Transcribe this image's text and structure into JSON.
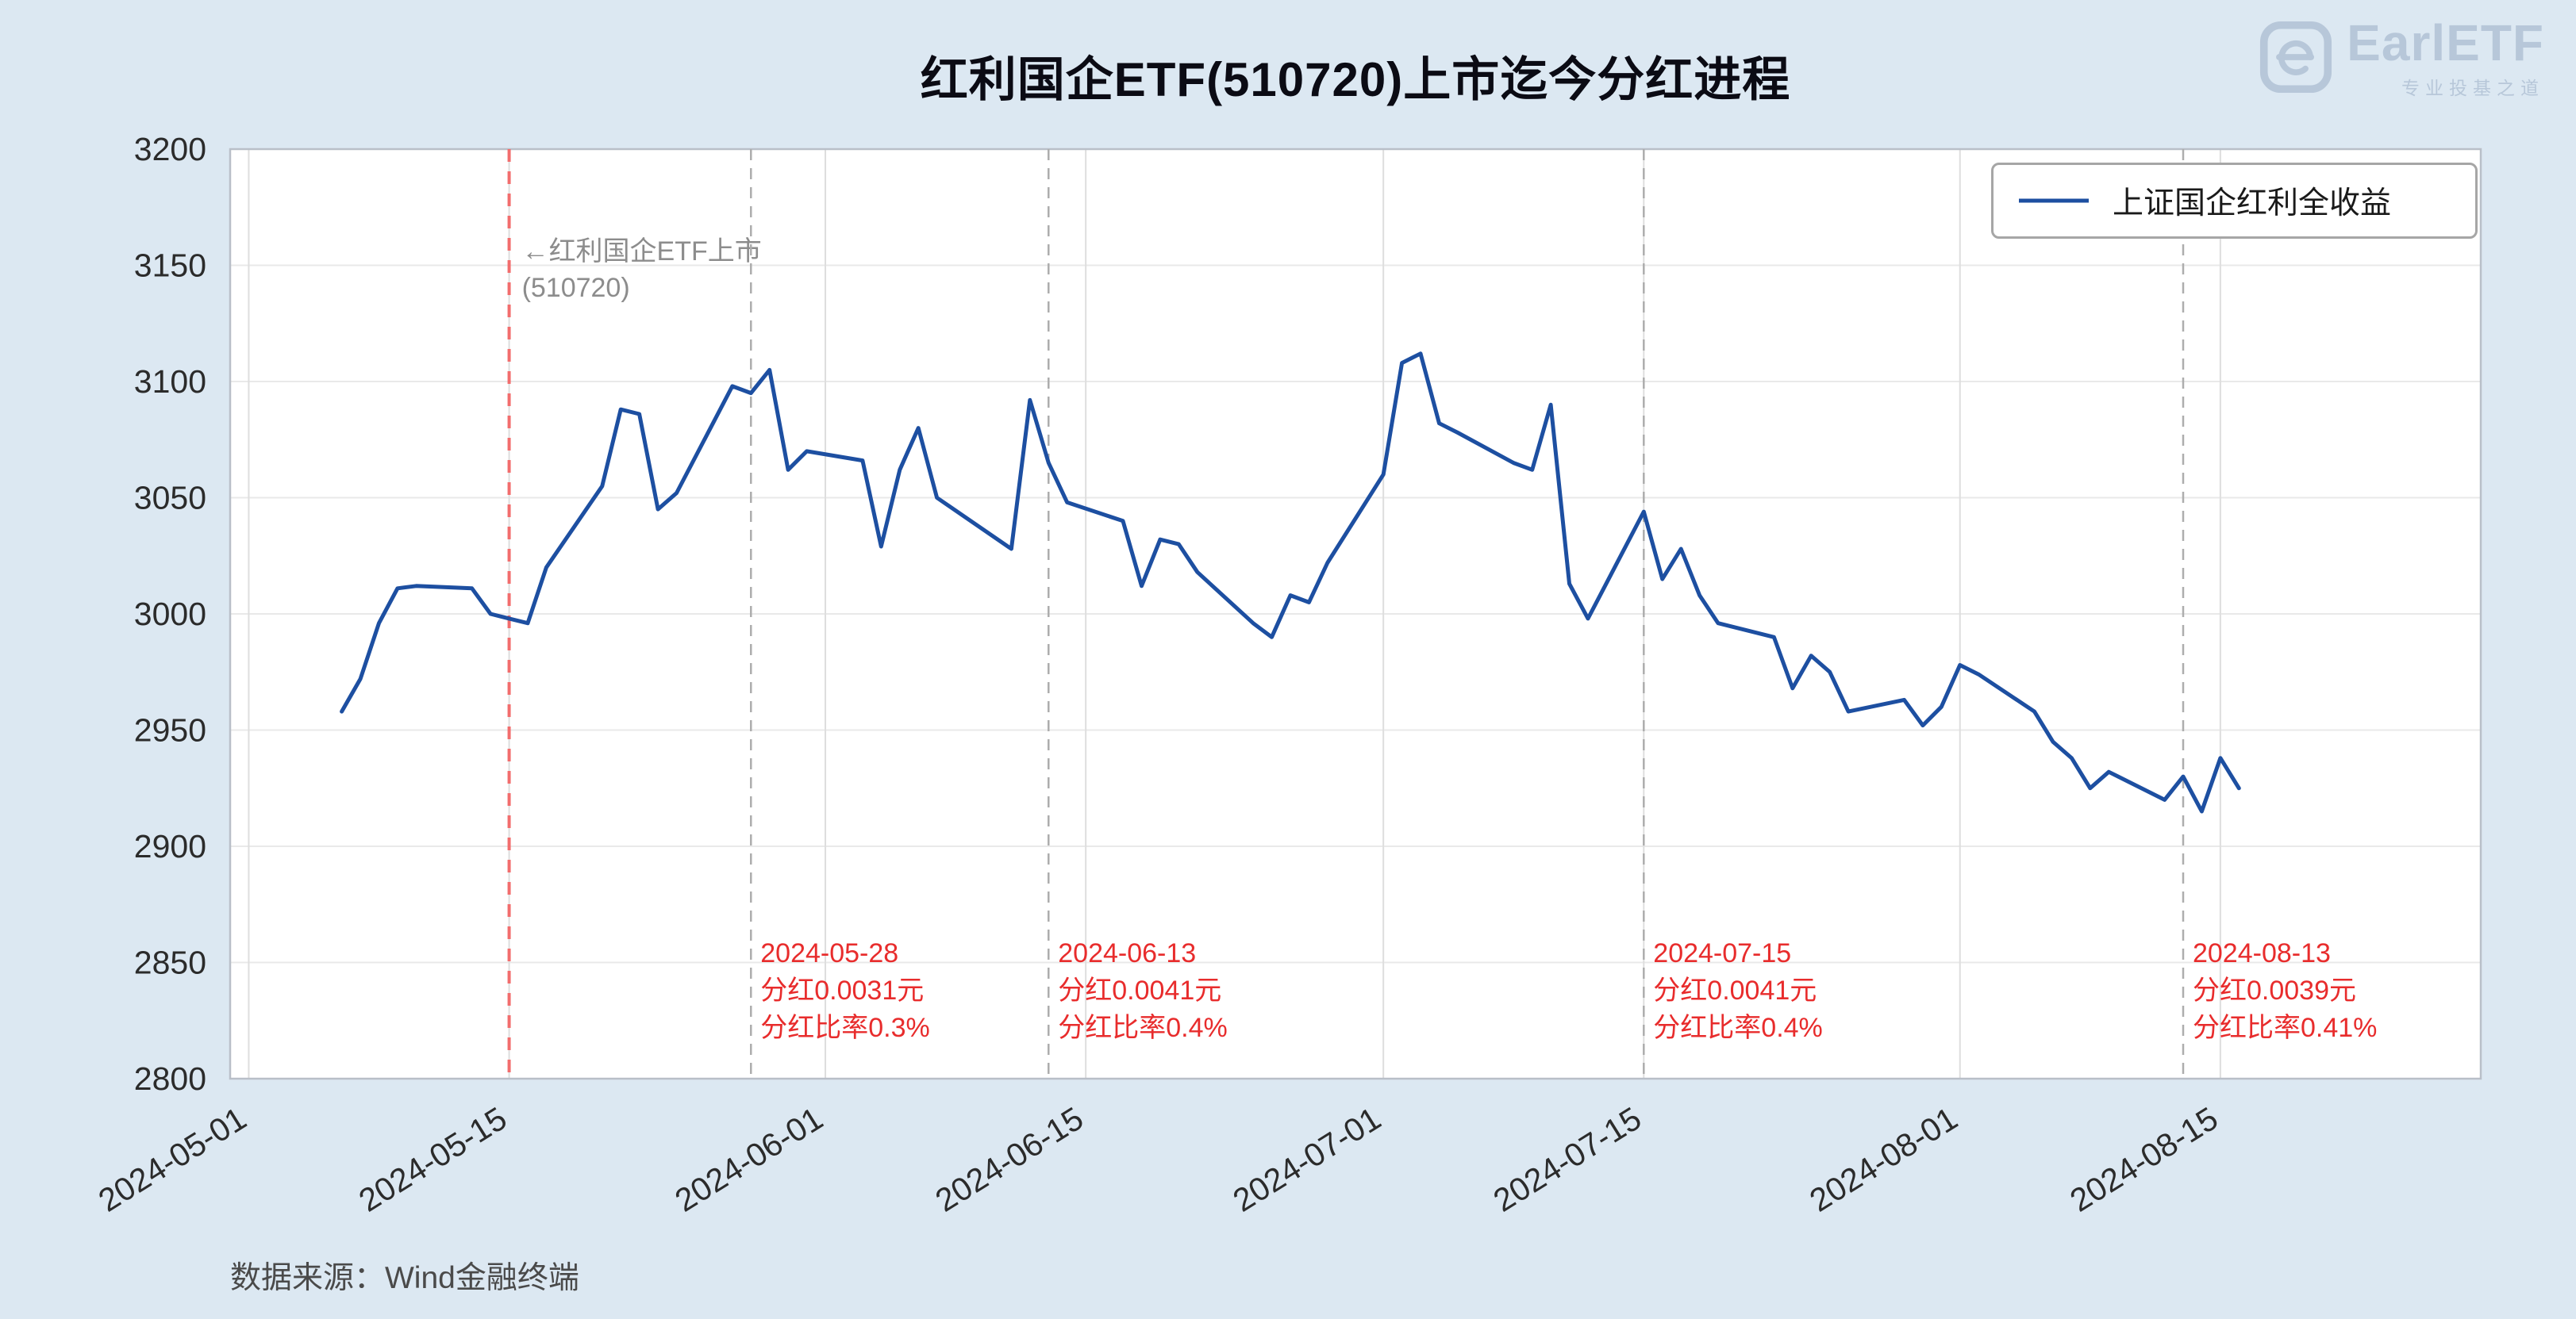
{
  "page": {
    "background_color": "#dce8f2"
  },
  "header": {
    "title": "红利国企ETF(510720)上市迄今分红进程"
  },
  "logo": {
    "name": "EarlETF",
    "tagline": "专业投基之道",
    "color": "#b7c7d9"
  },
  "legend": {
    "label": "上证国企红利全收益",
    "line_color": "#1d4fa1"
  },
  "footer": {
    "source": "数据来源：Wind金融终端"
  },
  "chart_data": {
    "type": "line",
    "title": "红利国企ETF(510720)上市迄今分红进程",
    "xlabel": "",
    "ylabel": "",
    "grid": true,
    "legend_position": "upper right",
    "x_domain": [
      "2024-04-30",
      "2024-08-29"
    ],
    "y_domain": [
      2800,
      3200
    ],
    "y_ticks": [
      2800,
      2850,
      2900,
      2950,
      3000,
      3050,
      3100,
      3150,
      3200
    ],
    "x_ticks": [
      "2024-05-01",
      "2024-05-15",
      "2024-06-01",
      "2024-06-15",
      "2024-07-01",
      "2024-07-15",
      "2024-08-01",
      "2024-08-15"
    ],
    "tick_color": "#2b2b2b",
    "plot_background": "#ffffff",
    "series": [
      {
        "name": "上证国企红利全收益",
        "color": "#1d4fa1",
        "points": [
          [
            "2024-05-06",
            2958
          ],
          [
            "2024-05-07",
            2972
          ],
          [
            "2024-05-08",
            2996
          ],
          [
            "2024-05-09",
            3011
          ],
          [
            "2024-05-10",
            3012
          ],
          [
            "2024-05-13",
            3011
          ],
          [
            "2024-05-14",
            3000
          ],
          [
            "2024-05-15",
            2998
          ],
          [
            "2024-05-16",
            2996
          ],
          [
            "2024-05-17",
            3020
          ],
          [
            "2024-05-20",
            3055
          ],
          [
            "2024-05-21",
            3088
          ],
          [
            "2024-05-22",
            3086
          ],
          [
            "2024-05-23",
            3045
          ],
          [
            "2024-05-24",
            3052
          ],
          [
            "2024-05-27",
            3098
          ],
          [
            "2024-05-28",
            3095
          ],
          [
            "2024-05-29",
            3105
          ],
          [
            "2024-05-30",
            3062
          ],
          [
            "2024-05-31",
            3070
          ],
          [
            "2024-06-03",
            3066
          ],
          [
            "2024-06-04",
            3029
          ],
          [
            "2024-06-05",
            3062
          ],
          [
            "2024-06-06",
            3080
          ],
          [
            "2024-06-07",
            3050
          ],
          [
            "2024-06-11",
            3028
          ],
          [
            "2024-06-12",
            3092
          ],
          [
            "2024-06-13",
            3065
          ],
          [
            "2024-06-14",
            3048
          ],
          [
            "2024-06-17",
            3040
          ],
          [
            "2024-06-18",
            3012
          ],
          [
            "2024-06-19",
            3032
          ],
          [
            "2024-06-20",
            3030
          ],
          [
            "2024-06-21",
            3018
          ],
          [
            "2024-06-24",
            2996
          ],
          [
            "2024-06-25",
            2990
          ],
          [
            "2024-06-26",
            3008
          ],
          [
            "2024-06-27",
            3005
          ],
          [
            "2024-06-28",
            3022
          ],
          [
            "2024-07-01",
            3060
          ],
          [
            "2024-07-02",
            3108
          ],
          [
            "2024-07-03",
            3112
          ],
          [
            "2024-07-04",
            3082
          ],
          [
            "2024-07-05",
            3078
          ],
          [
            "2024-07-08",
            3065
          ],
          [
            "2024-07-09",
            3062
          ],
          [
            "2024-07-10",
            3090
          ],
          [
            "2024-07-11",
            3013
          ],
          [
            "2024-07-12",
            2998
          ],
          [
            "2024-07-15",
            3044
          ],
          [
            "2024-07-16",
            3015
          ],
          [
            "2024-07-17",
            3028
          ],
          [
            "2024-07-18",
            3008
          ],
          [
            "2024-07-19",
            2996
          ],
          [
            "2024-07-22",
            2990
          ],
          [
            "2024-07-23",
            2968
          ],
          [
            "2024-07-24",
            2982
          ],
          [
            "2024-07-25",
            2975
          ],
          [
            "2024-07-26",
            2958
          ],
          [
            "2024-07-29",
            2963
          ],
          [
            "2024-07-30",
            2952
          ],
          [
            "2024-07-31",
            2960
          ],
          [
            "2024-08-01",
            2978
          ],
          [
            "2024-08-02",
            2974
          ],
          [
            "2024-08-05",
            2958
          ],
          [
            "2024-08-06",
            2945
          ],
          [
            "2024-08-07",
            2938
          ],
          [
            "2024-08-08",
            2925
          ],
          [
            "2024-08-09",
            2932
          ],
          [
            "2024-08-12",
            2920
          ],
          [
            "2024-08-13",
            2930
          ],
          [
            "2024-08-14",
            2915
          ],
          [
            "2024-08-15",
            2938
          ],
          [
            "2024-08-16",
            2925
          ]
        ]
      }
    ],
    "listing_marker": {
      "date": "2024-05-15",
      "lines": [
        "←红利国企ETF上市",
        "(510720)"
      ],
      "line_color": "#f26d6d",
      "text_color": "#8c8c8c"
    },
    "dividend_markers": [
      {
        "date": "2024-05-28",
        "lines": [
          "2024-05-28",
          "分红0.0031元",
          "分红比率0.3%"
        ]
      },
      {
        "date": "2024-06-13",
        "lines": [
          "2024-06-13",
          "分红0.0041元",
          "分红比率0.4%"
        ]
      },
      {
        "date": "2024-07-15",
        "lines": [
          "2024-07-15",
          "分红0.0041元",
          "分红比率0.4%"
        ]
      },
      {
        "date": "2024-08-13",
        "lines": [
          "2024-08-13",
          "分红0.0039元",
          "分红比率0.41%"
        ]
      }
    ],
    "marker_line_color": "#adadad",
    "marker_text_color": "#e82c2c"
  }
}
